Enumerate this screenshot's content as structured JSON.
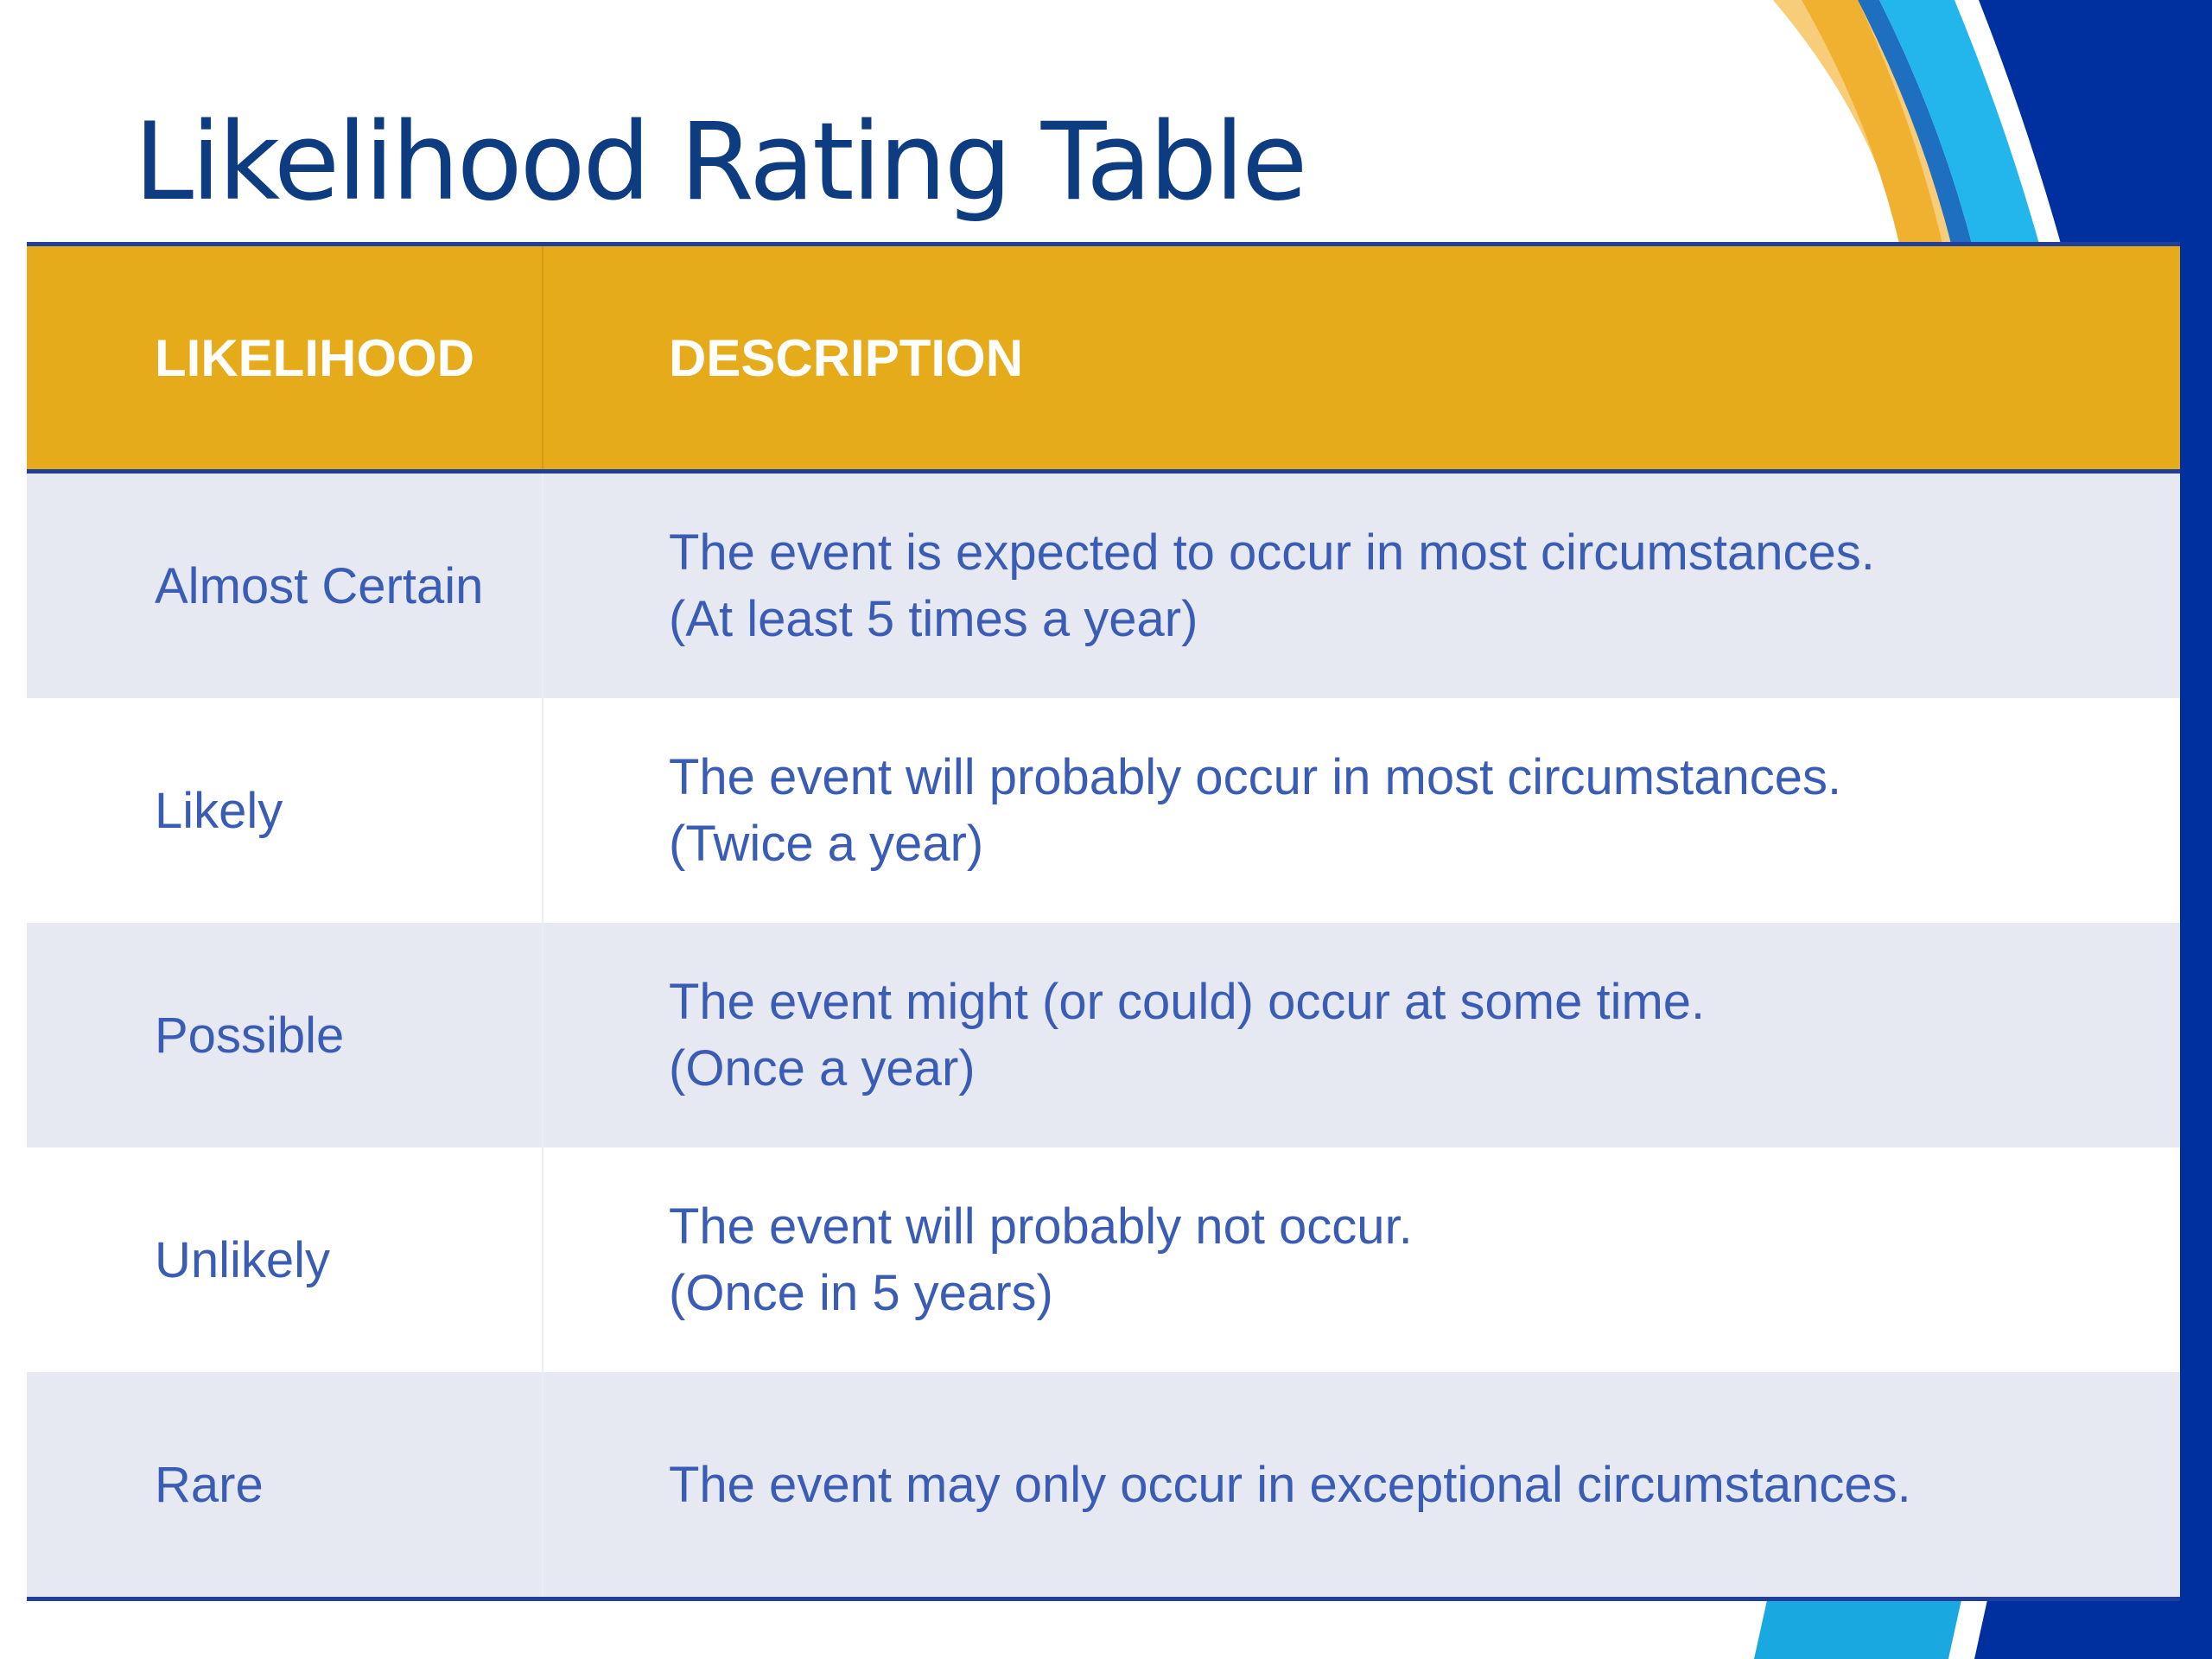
{
  "title": "Likelihood Rating Table",
  "table": {
    "headers": [
      "LIKELIHOOD",
      "DESCRIPTION"
    ],
    "rows": [
      {
        "likelihood": "Almost Certain",
        "description": [
          "The event is expected to occur in most circumstances.",
          "(At least 5 times a year)"
        ]
      },
      {
        "likelihood": "Likely",
        "description": [
          "The event will probably occur in most circumstances.",
          "(Twice a year)"
        ]
      },
      {
        "likelihood": "Possible",
        "description": [
          "The event might (or could) occur at some time.",
          "(Once a year)"
        ]
      },
      {
        "likelihood": "Unlikely",
        "description": [
          "The event will probably not occur.",
          "(Once in 5 years)"
        ]
      },
      {
        "likelihood": "Rare",
        "description": [
          "The event may only occur in exceptional circumstances."
        ]
      }
    ]
  },
  "colors": {
    "title_text": "#0e3c80",
    "header_fill": "#e6ab1a",
    "header_text": "#ffffff",
    "row_shade": "#e6e8f2",
    "cell_text": "#3b5cb5",
    "rule_blue": "#1f3f9a",
    "accent_navy": "#0030a0",
    "accent_gold": "#f0b030",
    "accent_cyan": "#1aa8e0"
  }
}
